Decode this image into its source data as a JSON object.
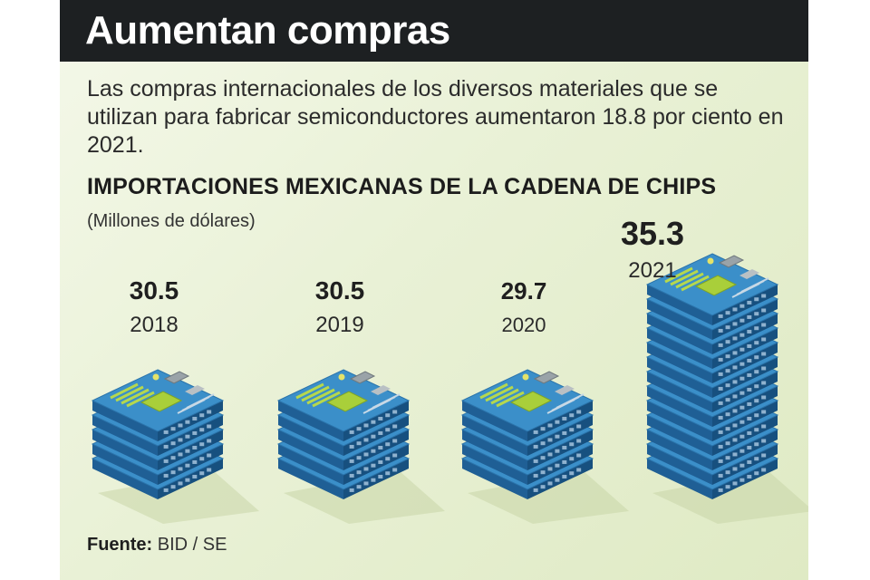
{
  "header": {
    "title": "Aumentan compras",
    "subtitle": "Las compras internacionales de los diversos materiales que se utilizan para fabricar semiconductores aumentaron 18.8 por ciento en 2021."
  },
  "chart_data": {
    "type": "bar",
    "title": "IMPORTACIONES MEXICANAS DE LA CADENA DE CHIPS",
    "ylabel": "(Millones de dólares)",
    "categories": [
      "2018",
      "2019",
      "2020",
      "2021"
    ],
    "values": [
      30.5,
      30.5,
      29.7,
      35.3
    ],
    "value_labels": [
      "30.5",
      "30.5",
      "29.7",
      "35.3"
    ],
    "stack_counts": [
      5,
      5,
      5,
      13
    ]
  },
  "source": {
    "label": "Fuente:",
    "value": "BID / SE"
  },
  "colors": {
    "title_bar": "#1d2022",
    "board_blue": "#3b8fc9",
    "board_dark": "#1f5f95",
    "chip_green": "#a9cf3a",
    "background": "#e9f1d6"
  }
}
